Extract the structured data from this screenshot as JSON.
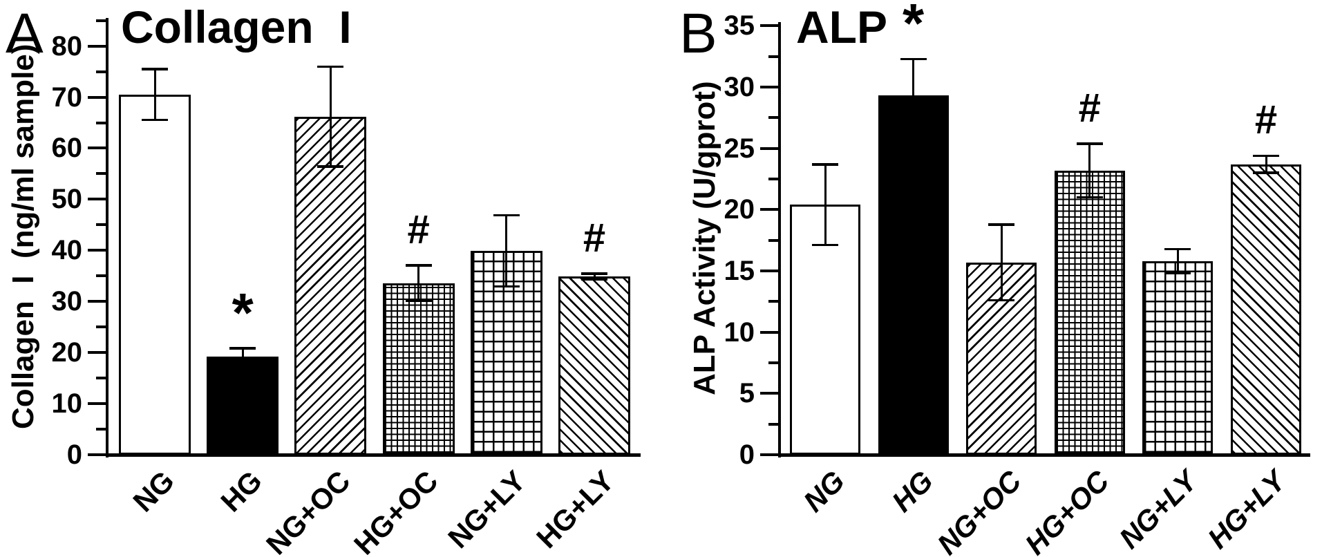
{
  "figure_colors": {
    "foreground": "#000000",
    "background": "#ffffff"
  },
  "chart_data": [
    {
      "type": "bar",
      "panel_letter": "A",
      "title": "Collagen  I",
      "ylabel": "Collagen  I  (ng/ml sample)",
      "xlabel": "",
      "categories": [
        "NG",
        "HG",
        "NG+OC",
        "HG+OC",
        "NG+LY",
        "HG+LY"
      ],
      "values": [
        70.5,
        19.2,
        66.2,
        33.6,
        39.9,
        34.9
      ],
      "errors": [
        5.0,
        1.7,
        9.8,
        3.5,
        7.0,
        0.6
      ],
      "significance": [
        "",
        "*",
        "",
        "#",
        "",
        "#"
      ],
      "bar_fills": [
        "white",
        "black",
        "diagonal-up",
        "grid-fine",
        "grid-coarse",
        "diagonal-down"
      ],
      "ylim": [
        0,
        85.5
      ],
      "yticks": [
        0,
        10,
        20,
        30,
        40,
        50,
        60,
        70,
        80
      ],
      "y_minor_ticks": [
        5,
        15,
        25,
        35,
        45,
        55,
        65,
        75,
        85
      ],
      "x_labels_italic": false,
      "grid": false,
      "legend": "none"
    },
    {
      "type": "bar",
      "panel_letter": "B",
      "title": "ALP",
      "ylabel": "ALP Activity (U/gprot)",
      "xlabel": "",
      "categories": [
        "NG",
        "HG",
        "NG+OC",
        "HG+OC",
        "NG+LY",
        "HG+LY"
      ],
      "values": [
        20.4,
        29.3,
        15.7,
        23.2,
        15.8,
        23.7
      ],
      "errors": [
        3.3,
        3.0,
        3.1,
        2.2,
        1.0,
        0.7
      ],
      "significance": [
        "",
        "*",
        "",
        "#",
        "",
        "#"
      ],
      "bar_fills": [
        "white",
        "black",
        "diagonal-up",
        "grid-fine",
        "grid-coarse",
        "diagonal-down"
      ],
      "ylim": [
        0,
        35.3
      ],
      "yticks": [
        0,
        5,
        10,
        15,
        20,
        25,
        30,
        35
      ],
      "y_minor_ticks": [
        2.5,
        7.5,
        12.5,
        17.5,
        22.5,
        27.5,
        32.5
      ],
      "x_labels_italic": true,
      "grid": false,
      "legend": "none"
    }
  ]
}
